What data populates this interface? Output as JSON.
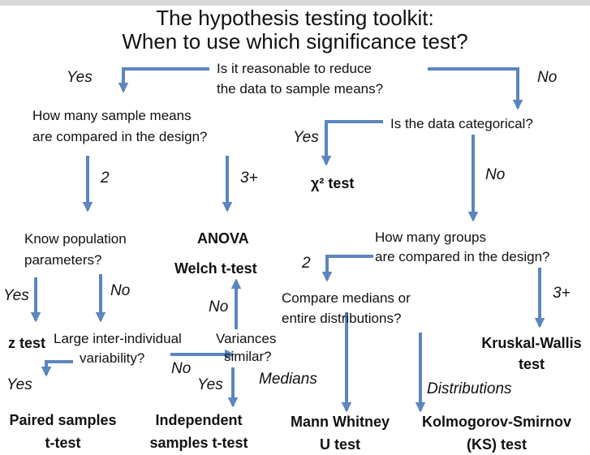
{
  "title": {
    "line1": "The hypothesis testing toolkit:",
    "line2": "When to use which significance test?"
  },
  "questions": {
    "q1_line1": "Is it reasonable to reduce",
    "q1_line2": "the data to sample means?",
    "q2_line1": "How many sample means",
    "q2_line2": "are compared in the design?",
    "q3": "Is the data categorical?",
    "q4_line1": "Know population",
    "q4_line2": "parameters?",
    "q5_line1": "How many groups",
    "q5_line2": "are compared in the design?",
    "q6_line1": "Compare medians or",
    "q6_line2": "entire distributions?",
    "q7_line1": "Large inter-individual",
    "q7_line2": "variability?",
    "q8_line1": "Variances",
    "q8_line2": "similar?"
  },
  "labels": {
    "yes": "Yes",
    "no": "No",
    "two": "2",
    "three_plus": "3+",
    "medians": "Medians",
    "distributions": "Distributions"
  },
  "tests": {
    "chi_square": "χ² test",
    "anova": "ANOVA",
    "welch": "Welch t-test",
    "z_test": "z test",
    "kruskal_line1": "Kruskal-Wallis",
    "kruskal_line2": "test",
    "paired_line1": "Paired samples",
    "paired_line2": "t-test",
    "independent_line1": "Independent",
    "independent_line2": "samples t-test",
    "mann_line1": "Mann Whitney",
    "mann_line2": "U test",
    "ks_line1": "Kolmogorov-Smirnov",
    "ks_line2": "(KS) test"
  },
  "colors": {
    "arrow": "#5b86c0",
    "background": "#ffffff",
    "text": "#111111",
    "top_band": "#d9d9d9"
  }
}
